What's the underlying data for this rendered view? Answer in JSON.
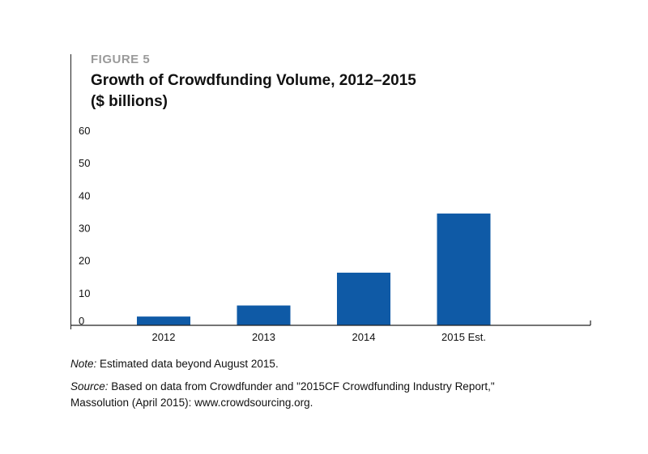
{
  "header": {
    "figure_label": "FIGURE 5",
    "title": "Growth of Crowdfunding Volume, 2012–2015",
    "subtitle": "($ billions)"
  },
  "footer": {
    "note_label": "Note:",
    "note_text": " Estimated data beyond August 2015.",
    "source_label": "Source:",
    "source_line1": " Based on data from Crowdfunder and \"2015CF Crowdfunding Industry Report,\"",
    "source_line2": "Massolution (April 2015): www.crowdsourcing.org."
  },
  "colors": {
    "bar": "#0f5aa6",
    "axis": "#222222",
    "figure_label": "#9a9a9a"
  },
  "chart_data": {
    "type": "bar",
    "title": "Growth of Crowdfunding Volume, 2012–2015",
    "subtitle": "($ billions)",
    "xlabel": "",
    "ylabel": "",
    "categories": [
      "2012",
      "2013",
      "2014",
      "2015 Est."
    ],
    "values": [
      2.7,
      6.1,
      16.2,
      34.4
    ],
    "ylim": [
      0,
      60
    ],
    "yticks": [
      0,
      10,
      20,
      30,
      40,
      50,
      60
    ],
    "grid": false,
    "legend": "none"
  }
}
